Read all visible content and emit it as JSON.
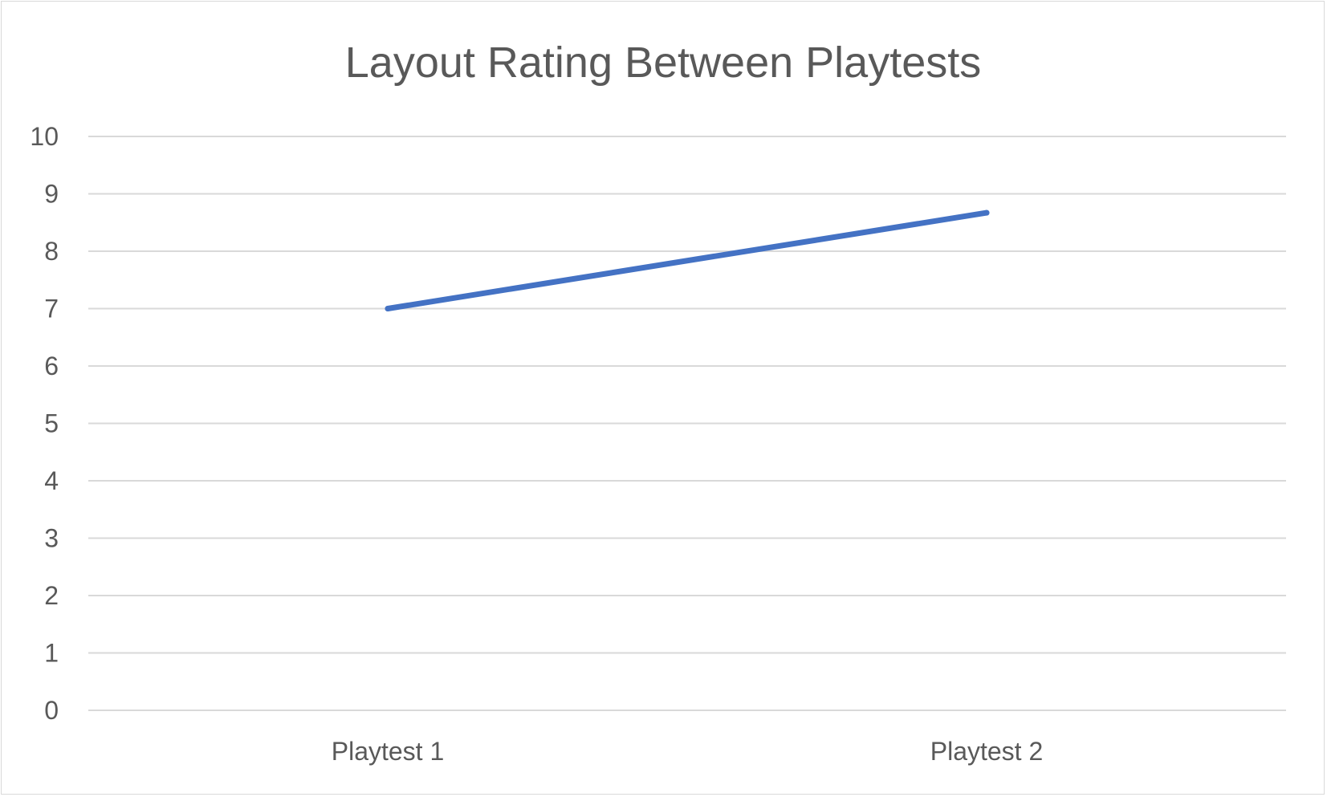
{
  "chart_data": {
    "type": "line",
    "title": "Layout Rating Between Playtests",
    "xlabel": "",
    "ylabel": "",
    "categories": [
      "Playtest 1",
      "Playtest 2"
    ],
    "series": [
      {
        "values": [
          7,
          8.67
        ],
        "color": "#4472c4"
      }
    ],
    "ylim": [
      0,
      10
    ],
    "yticks": [
      "0",
      "1",
      "2",
      "3",
      "4",
      "5",
      "6",
      "7",
      "8",
      "9",
      "10"
    ],
    "grid": true,
    "legend": "none"
  }
}
